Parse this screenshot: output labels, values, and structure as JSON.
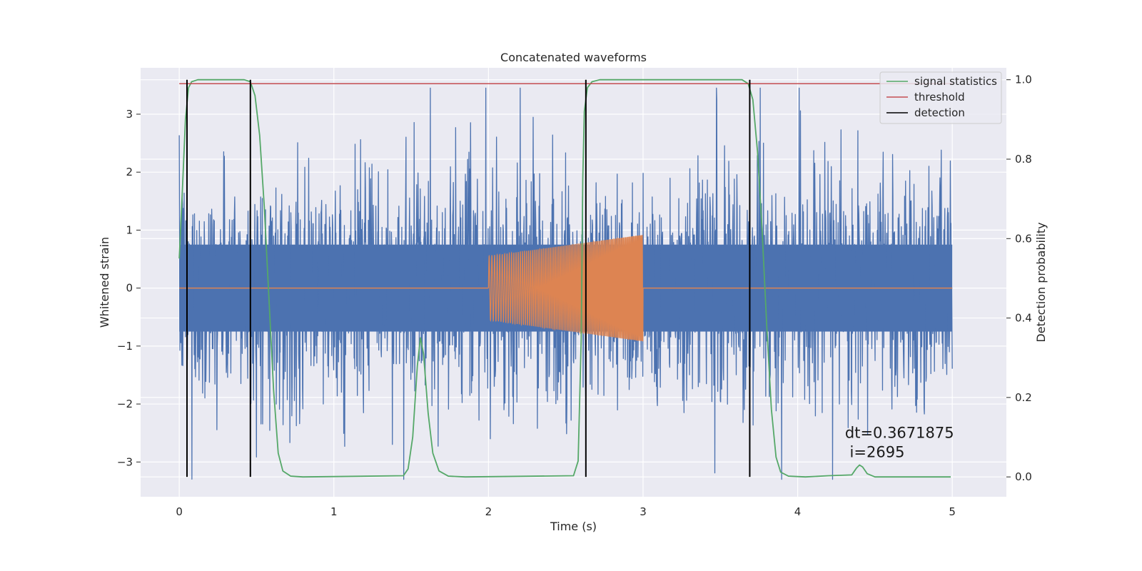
{
  "chart_data": {
    "type": "line",
    "title": "Concatenated waveforms",
    "xlabel": "Time (s)",
    "ylabel": "Whitened strain",
    "ylabel_right": "Detection probability",
    "xlim": [
      -0.25,
      5.35
    ],
    "ylim": [
      -3.6,
      3.8
    ],
    "ylim_right": [
      -0.05,
      1.03
    ],
    "x_ticks": [
      0,
      1,
      2,
      3,
      4,
      5
    ],
    "y_ticks": [
      -3,
      -2,
      -1,
      0,
      1,
      2,
      3
    ],
    "y_ticks_right": [
      0.0,
      0.2,
      0.4,
      0.6,
      0.8,
      1.0
    ],
    "grid": true,
    "legend_position": "top-right",
    "legend": [
      {
        "label": "signal statistics",
        "color": "#55a868"
      },
      {
        "label": "threshold",
        "color": "#c44e52"
      },
      {
        "label": "detection",
        "color": "#000000"
      }
    ],
    "series": [
      {
        "kind": "noise",
        "color": "#4c72b0",
        "x_range": [
          0,
          5
        ],
        "core_amplitude": 0.75,
        "max_positive": 3.45,
        "max_negative": -3.3
      },
      {
        "kind": "chirp",
        "color": "#dd8452",
        "x_range": [
          0,
          5
        ],
        "active_range": [
          2.0,
          3.0
        ],
        "amplitude_start": 0.55,
        "amplitude_end": 0.92
      },
      {
        "name": "signal statistics",
        "axis": "right",
        "color": "#55a868",
        "points": [
          [
            0.0,
            0.55
          ],
          [
            0.02,
            0.72
          ],
          [
            0.04,
            0.9
          ],
          [
            0.06,
            0.98
          ],
          [
            0.08,
            0.995
          ],
          [
            0.12,
            1.0
          ],
          [
            0.42,
            1.0
          ],
          [
            0.46,
            0.995
          ],
          [
            0.49,
            0.96
          ],
          [
            0.52,
            0.86
          ],
          [
            0.55,
            0.68
          ],
          [
            0.58,
            0.45
          ],
          [
            0.61,
            0.22
          ],
          [
            0.64,
            0.06
          ],
          [
            0.67,
            0.015
          ],
          [
            0.72,
            0.002
          ],
          [
            0.8,
            0.0
          ],
          [
            1.45,
            0.003
          ],
          [
            1.48,
            0.02
          ],
          [
            1.51,
            0.1
          ],
          [
            1.54,
            0.28
          ],
          [
            1.56,
            0.35
          ],
          [
            1.58,
            0.31
          ],
          [
            1.61,
            0.16
          ],
          [
            1.64,
            0.06
          ],
          [
            1.68,
            0.015
          ],
          [
            1.74,
            0.002
          ],
          [
            1.85,
            0.0
          ],
          [
            2.55,
            0.003
          ],
          [
            2.58,
            0.04
          ],
          [
            2.6,
            0.35
          ],
          [
            2.61,
            0.75
          ],
          [
            2.62,
            0.92
          ],
          [
            2.64,
            0.98
          ],
          [
            2.67,
            0.995
          ],
          [
            2.72,
            1.0
          ],
          [
            3.64,
            1.0
          ],
          [
            3.68,
            0.99
          ],
          [
            3.71,
            0.95
          ],
          [
            3.74,
            0.82
          ],
          [
            3.77,
            0.62
          ],
          [
            3.8,
            0.38
          ],
          [
            3.83,
            0.17
          ],
          [
            3.86,
            0.05
          ],
          [
            3.89,
            0.012
          ],
          [
            3.94,
            0.002
          ],
          [
            4.05,
            0.0
          ],
          [
            4.2,
            0.003
          ],
          [
            4.35,
            0.005
          ],
          [
            4.38,
            0.022
          ],
          [
            4.4,
            0.03
          ],
          [
            4.42,
            0.025
          ],
          [
            4.45,
            0.008
          ],
          [
            4.5,
            0.0
          ],
          [
            4.99,
            0.0
          ]
        ]
      },
      {
        "name": "threshold",
        "axis": "right",
        "color": "#c44e52",
        "x_range": [
          0,
          5
        ],
        "value": 0.99
      }
    ],
    "detections": {
      "name": "detection",
      "color": "#000000",
      "x": [
        0.05,
        0.46,
        2.63,
        3.69
      ],
      "y_range_right": [
        0.0,
        1.0
      ]
    },
    "annotation": {
      "line1": "dt=0.3671875",
      "line2": " i=2695",
      "x": 4.5,
      "y": -2.55
    }
  }
}
